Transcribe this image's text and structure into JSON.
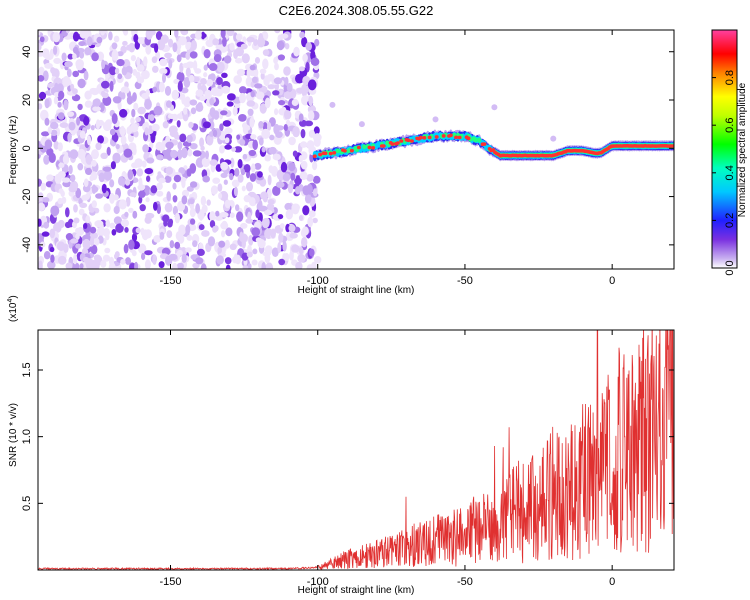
{
  "title": "C2E6.2024.308.05.55.G22",
  "chart_data": [
    {
      "type": "heatmap",
      "xlabel": "Height of straight line (km)",
      "ylabel": "Frequency (Hz)",
      "xlim": [
        -195,
        21
      ],
      "ylim": [
        -50,
        49
      ],
      "xticks": [
        -150,
        -100,
        -50,
        0
      ],
      "yticks": [
        -40,
        -20,
        0,
        20,
        40
      ],
      "colorbar": {
        "label": "Normalized spectral amplitude",
        "range": [
          0,
          1
        ],
        "ticks": [
          0.0,
          0.2,
          0.4,
          0.6,
          0.8
        ]
      },
      "noise_region_x": [
        -195,
        -100
      ],
      "ridge": {
        "x": [
          -101,
          -95,
          -90,
          -85,
          -80,
          -75,
          -70,
          -65,
          -60,
          -55,
          -50,
          -45,
          -42,
          -38,
          -35,
          -30,
          -25,
          -20,
          -15,
          -10,
          -6,
          -4,
          0,
          5,
          10,
          15,
          21
        ],
        "y": [
          -3,
          -2,
          -1,
          0,
          1,
          2,
          3,
          4,
          5,
          5,
          5,
          3,
          0,
          -3,
          -3,
          -3,
          -3,
          -3,
          -1,
          -1,
          -2,
          -2,
          1,
          1,
          1,
          1,
          1
        ]
      }
    },
    {
      "type": "line",
      "xlabel": "Height of straight line (km)",
      "ylabel": "SNR (10 * v/v)",
      "y_multiplier": "(x10^4)",
      "xlim": [
        -195,
        21
      ],
      "ylim": [
        0,
        1.8
      ],
      "xticks": [
        -150,
        -100,
        -50,
        0
      ],
      "yticks": [
        0.5,
        1.0,
        1.5
      ],
      "ytick_labels": [
        "0.5",
        "1.0",
        "1.5"
      ],
      "series": [
        {
          "color": "#e03030",
          "trend": {
            "x": [
              -195,
              -150,
              -110,
              -100,
              -90,
              -80,
              -70,
              -60,
              -50,
              -45,
              -40,
              -35,
              -30,
              -25,
              -20,
              -15,
              -10,
              -5,
              0,
              5,
              10,
              15,
              21
            ],
            "y": [
              0.01,
              0.01,
              0.01,
              0.02,
              0.08,
              0.12,
              0.17,
              0.22,
              0.27,
              0.29,
              0.33,
              0.42,
              0.46,
              0.52,
              0.57,
              0.62,
              0.68,
              0.75,
              0.85,
              0.95,
              1.05,
              1.15,
              1.35
            ]
          },
          "peaks": {
            "x": [
              -70,
              -47,
              -40,
              -37,
              -35,
              -18,
              -5,
              -1,
              2,
              7,
              14,
              18
            ],
            "y": [
              0.55,
              0.55,
              0.93,
              0.92,
              1.07,
              1.0,
              1.8,
              1.35,
              1.45,
              1.52,
              1.52,
              1.52
            ]
          }
        }
      ]
    }
  ]
}
